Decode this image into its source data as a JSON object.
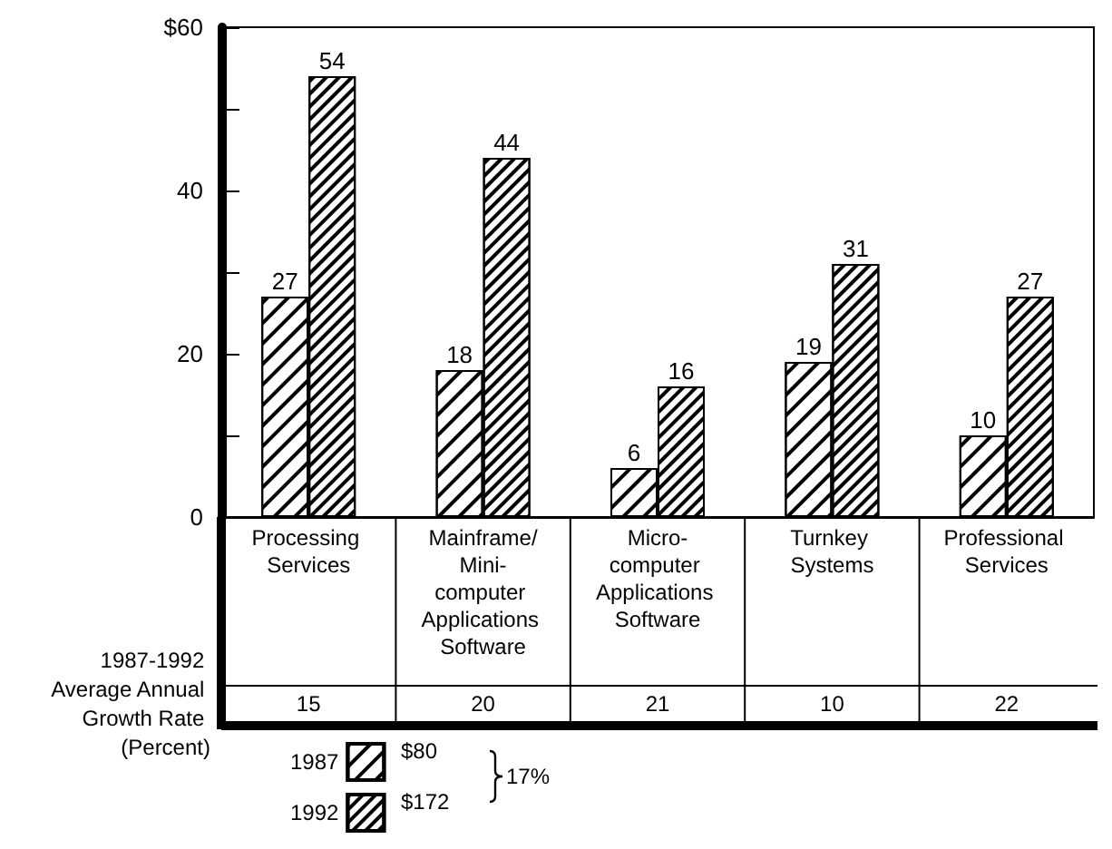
{
  "chart_data": {
    "type": "bar",
    "categories": [
      "Processing Services",
      "Mainframe/Mini-computer Applications Software",
      "Micro-computer Applications Software",
      "Turnkey Systems",
      "Professional Services"
    ],
    "series": [
      {
        "name": "1987",
        "color": "#ffffff",
        "values": [
          27,
          18,
          6,
          19,
          10
        ]
      },
      {
        "name": "1992",
        "color": "#ffffff",
        "values": [
          54,
          44,
          16,
          31,
          27
        ]
      }
    ],
    "ylim": [
      0,
      60
    ],
    "yticks": [
      0,
      {
        "value": 10,
        "label": null
      },
      20,
      {
        "value": 30,
        "label": null
      },
      40,
      {
        "value": 50,
        "label": null
      },
      {
        "value": 60,
        "label": "$60"
      }
    ],
    "data_labels": true,
    "grid": false,
    "legend": "bottom left",
    "annotations": [
      "1987-1992 Average Annual Growth Rate (Percent)",
      "15",
      "20",
      "21",
      "10",
      "22",
      "$80",
      "$172",
      "17%"
    ]
  }
}
